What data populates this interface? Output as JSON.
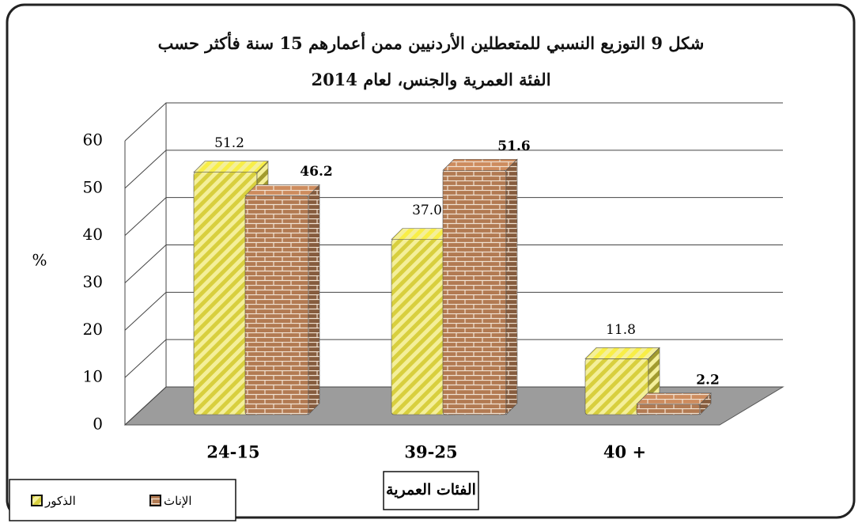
{
  "chart_data": {
    "type": "bar3d",
    "title": "شكل 9 التوزيع النسبي للمتعطلين الأردنيين ممن أعمارهم 15 سنة فأكثر حسب الفئة العمرية والجنس، لعام 2014",
    "y_label": "%",
    "x_label": "الفئات العمرية",
    "categories": [
      "24-15",
      "39-25",
      "40 +"
    ],
    "series": [
      {
        "name": "الذكور",
        "color": "#d8cf3e",
        "values": [
          51.2,
          37.0,
          11.8
        ],
        "value_labels": [
          "51.2",
          "37.0",
          "11.8"
        ]
      },
      {
        "name": "الإناث",
        "color": "#b27a52",
        "values": [
          46.2,
          51.6,
          2.2
        ],
        "value_labels": [
          "46.2",
          "51.6",
          "2.2"
        ]
      }
    ],
    "ylim": [
      0,
      60
    ],
    "yticks": [
      0,
      10,
      20,
      30,
      40,
      50,
      60
    ],
    "grid": true
  }
}
